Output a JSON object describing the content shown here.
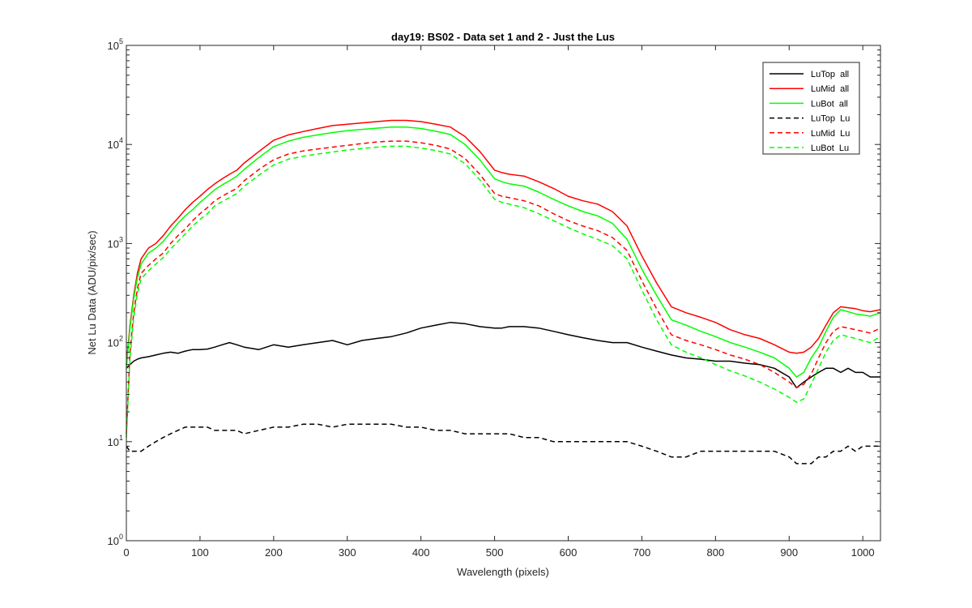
{
  "chart_data": {
    "type": "line",
    "title": "day19: BS02 - Data set 1 and 2 - Just the Lus",
    "xlabel": "Wavelength (pixels)",
    "ylabel": "Net Lu Data (ADU/pix/sec)",
    "xlim": [
      0,
      1024
    ],
    "ylim": [
      1,
      100000
    ],
    "yscale": "log",
    "x_ticks": [
      0,
      100,
      200,
      300,
      400,
      500,
      600,
      700,
      800,
      900,
      1000
    ],
    "x_tick_labels": [
      "0",
      "100",
      "200",
      "300",
      "400",
      "500",
      "600",
      "700",
      "800",
      "900",
      "1000"
    ],
    "y_ticks": [
      1,
      10,
      100,
      1000,
      10000,
      100000
    ],
    "y_tick_labels": [
      {
        "base": "10",
        "exp": "0"
      },
      {
        "base": "10",
        "exp": "1"
      },
      {
        "base": "10",
        "exp": "2"
      },
      {
        "base": "10",
        "exp": "3"
      },
      {
        "base": "10",
        "exp": "4"
      },
      {
        "base": "10",
        "exp": "5"
      }
    ],
    "legend_position": "top-right",
    "x": [
      0,
      5,
      10,
      15,
      20,
      30,
      40,
      50,
      60,
      70,
      80,
      90,
      100,
      110,
      120,
      130,
      140,
      150,
      160,
      180,
      200,
      220,
      240,
      260,
      280,
      300,
      320,
      340,
      360,
      380,
      400,
      420,
      440,
      460,
      480,
      500,
      510,
      520,
      540,
      560,
      580,
      600,
      620,
      640,
      660,
      680,
      700,
      720,
      740,
      760,
      780,
      800,
      820,
      840,
      860,
      880,
      900,
      910,
      920,
      930,
      940,
      950,
      960,
      970,
      980,
      990,
      1000,
      1010,
      1024
    ],
    "series": [
      {
        "name": "LuTop  all",
        "color": "#000000",
        "dash": "solid",
        "values": [
          55,
          60,
          65,
          68,
          70,
          72,
          75,
          78,
          80,
          78,
          82,
          85,
          85,
          86,
          90,
          95,
          100,
          95,
          90,
          85,
          95,
          90,
          95,
          100,
          105,
          95,
          105,
          110,
          115,
          125,
          140,
          150,
          160,
          155,
          145,
          140,
          140,
          145,
          145,
          140,
          130,
          120,
          112,
          105,
          100,
          100,
          90,
          82,
          75,
          70,
          68,
          65,
          65,
          62,
          60,
          55,
          45,
          35,
          40,
          45,
          50,
          55,
          55,
          50,
          55,
          50,
          50,
          45,
          45
        ]
      },
      {
        "name": "LuMid  all",
        "color": "#ff0000",
        "dash": "solid",
        "values": [
          60,
          150,
          300,
          500,
          700,
          900,
          1000,
          1200,
          1500,
          1800,
          2200,
          2600,
          3000,
          3500,
          4000,
          4500,
          5000,
          5500,
          6500,
          8500,
          11000,
          12500,
          13500,
          14500,
          15500,
          16000,
          16500,
          17000,
          17500,
          17500,
          17000,
          16000,
          15000,
          12000,
          8500,
          5500,
          5200,
          5000,
          4800,
          4200,
          3600,
          3000,
          2700,
          2500,
          2100,
          1500,
          750,
          400,
          230,
          200,
          180,
          160,
          135,
          120,
          110,
          95,
          80,
          78,
          80,
          90,
          110,
          150,
          200,
          230,
          225,
          220,
          210,
          205,
          215
        ]
      },
      {
        "name": "LuBot  all",
        "color": "#00ff00",
        "dash": "solid",
        "values": [
          55,
          140,
          280,
          450,
          620,
          800,
          900,
          1050,
          1300,
          1600,
          1900,
          2200,
          2600,
          3000,
          3500,
          3900,
          4300,
          4800,
          5600,
          7400,
          9500,
          10800,
          11800,
          12500,
          13200,
          13800,
          14200,
          14600,
          15000,
          15000,
          14500,
          13600,
          12600,
          10000,
          7000,
          4500,
          4200,
          4000,
          3800,
          3300,
          2800,
          2400,
          2100,
          1900,
          1600,
          1100,
          550,
          300,
          170,
          150,
          130,
          115,
          100,
          90,
          80,
          70,
          55,
          45,
          50,
          70,
          90,
          130,
          180,
          215,
          205,
          195,
          190,
          185,
          200
        ]
      },
      {
        "name": "LuTop  Lu",
        "color": "#000000",
        "dash": "dashed",
        "values": [
          9,
          8,
          8,
          8,
          8,
          9,
          10,
          11,
          12,
          13,
          14,
          14,
          14,
          14,
          13,
          13,
          13,
          13,
          12,
          13,
          14,
          14,
          15,
          15,
          14,
          15,
          15,
          15,
          15,
          14,
          14,
          13,
          13,
          12,
          12,
          12,
          12,
          12,
          11,
          11,
          10,
          10,
          10,
          10,
          10,
          10,
          9,
          8,
          7,
          7,
          8,
          8,
          8,
          8,
          8,
          8,
          7,
          6,
          6,
          6,
          7,
          7,
          8,
          8,
          9,
          8,
          9,
          9,
          9
        ]
      },
      {
        "name": "LuMid  Lu",
        "color": "#ff0000",
        "dash": "dashed",
        "values": [
          12,
          80,
          200,
          350,
          500,
          600,
          700,
          800,
          1000,
          1200,
          1400,
          1700,
          2000,
          2300,
          2700,
          3000,
          3300,
          3600,
          4300,
          5600,
          7000,
          8000,
          8600,
          9000,
          9400,
          9800,
          10200,
          10600,
          10800,
          10800,
          10400,
          9800,
          9000,
          7200,
          5000,
          3200,
          3000,
          2900,
          2700,
          2400,
          2000,
          1700,
          1500,
          1350,
          1150,
          850,
          420,
          220,
          120,
          105,
          95,
          85,
          75,
          68,
          60,
          50,
          40,
          35,
          38,
          48,
          70,
          100,
          130,
          145,
          140,
          135,
          130,
          125,
          140
        ]
      },
      {
        "name": "LuBot  Lu",
        "color": "#00ff00",
        "dash": "dashed",
        "values": [
          11,
          70,
          180,
          310,
          440,
          530,
          620,
          720,
          880,
          1050,
          1250,
          1500,
          1750,
          2000,
          2400,
          2650,
          2900,
          3200,
          3800,
          4900,
          6200,
          7100,
          7600,
          8000,
          8400,
          8800,
          9100,
          9400,
          9600,
          9600,
          9200,
          8700,
          8000,
          6400,
          4400,
          2800,
          2600,
          2500,
          2300,
          2000,
          1700,
          1450,
          1250,
          1100,
          950,
          700,
          340,
          170,
          95,
          80,
          70,
          60,
          52,
          46,
          40,
          34,
          28,
          25,
          27,
          38,
          55,
          80,
          105,
          120,
          115,
          110,
          105,
          100,
          115
        ]
      }
    ]
  }
}
